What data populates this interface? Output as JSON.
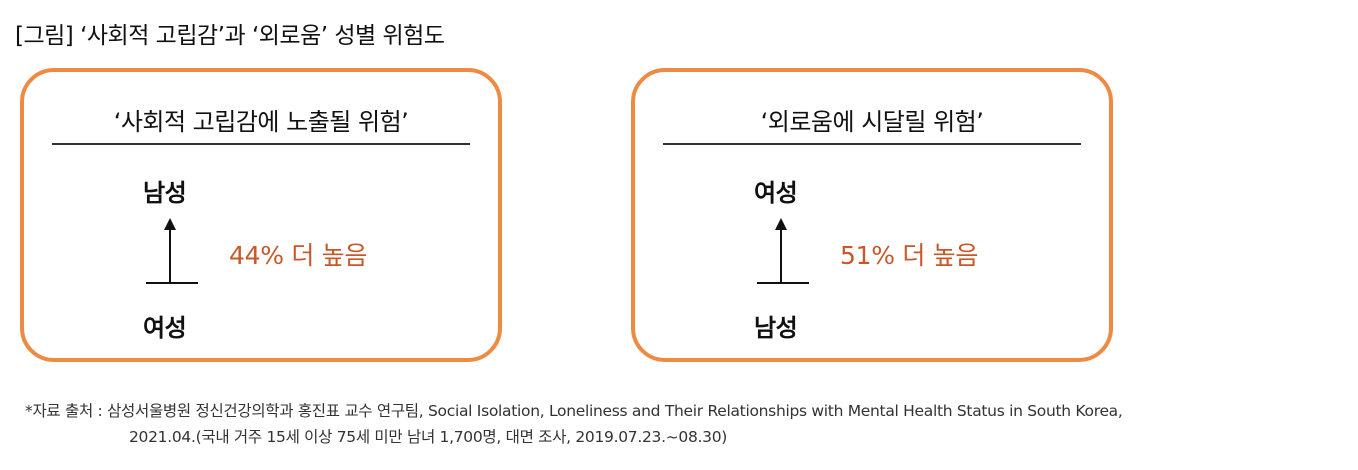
{
  "figure": {
    "title": "[그림] ‘사회적 고립감’과 ‘외로움’ 성별 위험도"
  },
  "cards": [
    {
      "heading": "‘사회적 고립감에 노출될 위험’",
      "higher_group": "남성",
      "lower_group": "여성",
      "stat_text": "44% 더 높음"
    },
    {
      "heading": "‘외로움에 시달릴 위험’",
      "higher_group": "여성",
      "lower_group": "남성",
      "stat_text": "51% 더 높음"
    }
  ],
  "source": {
    "line1": "*자료 출처 : 삼성서울병원 정신건강의학과 홍진표 교수 연구팀, Social Isolation, Loneliness and Their Relationships with Mental Health Status in South Korea,",
    "line2": "2021.04.(국내 거주 15세 이상 75세 미만 남녀 1,700명, 대면 조사, 2019.07.23.~08.30)"
  },
  "colors": {
    "card_border": "#ee8a42",
    "stat_text": "#c8582a"
  }
}
